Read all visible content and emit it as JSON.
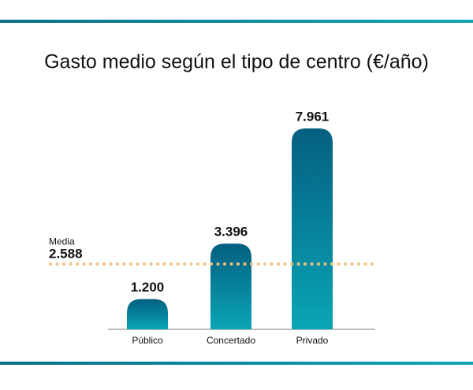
{
  "chart_data": {
    "type": "bar",
    "title": "Gasto medio según el tipo de centro (€/año)",
    "categories": [
      "Público",
      "Concertado",
      "Privado"
    ],
    "values": [
      1200,
      3396,
      7961
    ],
    "value_labels": [
      "1.200",
      "3.396",
      "7.961"
    ],
    "gradient": [
      "#045f80",
      "#0aa5b6"
    ],
    "reference_line": {
      "label": "Media",
      "value": 2588,
      "value_label": "2.588",
      "color": "#f5c27e"
    }
  }
}
